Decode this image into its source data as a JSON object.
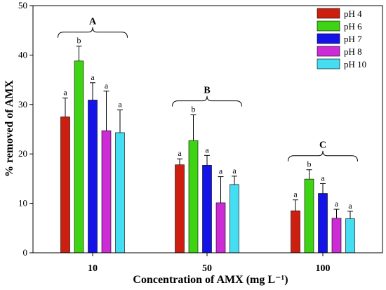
{
  "chart_data": {
    "type": "bar",
    "title": "",
    "xlabel": "Concentration of AMX (mg L⁻¹)",
    "ylabel": "% removed of AMX",
    "ylim": [
      0,
      50
    ],
    "yticks": [
      "0",
      "10",
      "20",
      "30",
      "40",
      "50"
    ],
    "categories": [
      "10",
      "50",
      "100"
    ],
    "legend_position": "top-right",
    "series": [
      {
        "name": "pH 4",
        "color": "#cc1f10",
        "values": [
          27.5,
          17.8,
          8.5
        ],
        "errors": [
          3.8,
          1.2,
          2.2
        ],
        "letters": [
          "a",
          "a",
          "a"
        ]
      },
      {
        "name": "pH 6",
        "color": "#3fd413",
        "values": [
          38.8,
          22.7,
          14.9
        ],
        "errors": [
          3.0,
          5.2,
          1.9
        ],
        "letters": [
          "b",
          "b",
          "b"
        ]
      },
      {
        "name": "pH 7",
        "color": "#1414e8",
        "values": [
          30.9,
          17.7,
          12.0
        ],
        "errors": [
          3.5,
          2.0,
          2.0
        ],
        "letters": [
          "a",
          "a",
          "a"
        ]
      },
      {
        "name": "pH 8",
        "color": "#cc2bd6",
        "values": [
          24.7,
          10.1,
          7.0
        ],
        "errors": [
          8.0,
          5.3,
          1.8
        ],
        "letters": [
          "a",
          "a",
          "a"
        ]
      },
      {
        "name": "pH 10",
        "color": "#44ddf2",
        "values": [
          24.3,
          13.8,
          6.9
        ],
        "errors": [
          4.6,
          1.7,
          1.5
        ],
        "letters": [
          "a",
          "a",
          "a"
        ]
      }
    ],
    "groups": [
      "A",
      "B",
      "C"
    ]
  }
}
